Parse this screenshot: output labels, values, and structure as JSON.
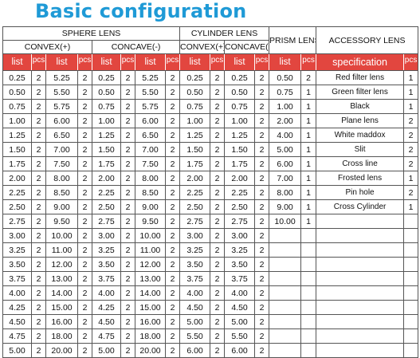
{
  "title": "Basic configuration",
  "headers": {
    "sphere_lens": "SPHERE LENS",
    "cylinder_lens": "CYLINDER LENS",
    "prism_lens": "PRISM LENS",
    "accessory_lens": "ACCESSORY LENS",
    "sphere_convex": "CONVEX(+)",
    "sphere_concave": "CONCAVE(-)",
    "cyl_convex": "CONVEX(+)",
    "cyl_concave": "CONCAVE(-)",
    "list": "list",
    "pcs": "pcs",
    "specification": "specification"
  },
  "rows": [
    [
      "0.25",
      "2",
      "5.25",
      "2",
      "0.25",
      "2",
      "5.25",
      "2",
      "0.25",
      "2",
      "0.25",
      "2",
      "0.50",
      "2",
      "Red filter lens",
      "1"
    ],
    [
      "0.50",
      "2",
      "5.50",
      "2",
      "0.50",
      "2",
      "5.50",
      "2",
      "0.50",
      "2",
      "0.50",
      "2",
      "0.75",
      "1",
      "Green filter lens",
      "1"
    ],
    [
      "0.75",
      "2",
      "5.75",
      "2",
      "0.75",
      "2",
      "5.75",
      "2",
      "0.75",
      "2",
      "0.75",
      "2",
      "1.00",
      "1",
      "Black",
      "1"
    ],
    [
      "1.00",
      "2",
      "6.00",
      "2",
      "1.00",
      "2",
      "6.00",
      "2",
      "1.00",
      "2",
      "1.00",
      "2",
      "2.00",
      "1",
      "Plane lens",
      "2"
    ],
    [
      "1.25",
      "2",
      "6.50",
      "2",
      "1.25",
      "2",
      "6.50",
      "2",
      "1.25",
      "2",
      "1.25",
      "2",
      "4.00",
      "1",
      "White maddox",
      "2"
    ],
    [
      "1.50",
      "2",
      "7.00",
      "2",
      "1.50",
      "2",
      "7.00",
      "2",
      "1.50",
      "2",
      "1.50",
      "2",
      "5.00",
      "1",
      "Slit",
      "2"
    ],
    [
      "1.75",
      "2",
      "7.50",
      "2",
      "1.75",
      "2",
      "7.50",
      "2",
      "1.75",
      "2",
      "1.75",
      "2",
      "6.00",
      "1",
      "Cross line",
      "2"
    ],
    [
      "2.00",
      "2",
      "8.00",
      "2",
      "2.00",
      "2",
      "8.00",
      "2",
      "2.00",
      "2",
      "2.00",
      "2",
      "7.00",
      "1",
      "Frosted lens",
      "1"
    ],
    [
      "2.25",
      "2",
      "8.50",
      "2",
      "2.25",
      "2",
      "8.50",
      "2",
      "2.25",
      "2",
      "2.25",
      "2",
      "8.00",
      "1",
      "Pin  hole",
      "2"
    ],
    [
      "2.50",
      "2",
      "9.00",
      "2",
      "2.50",
      "2",
      "9.00",
      "2",
      "2.50",
      "2",
      "2.50",
      "2",
      "9.00",
      "1",
      "Cross Cylinder",
      "1"
    ],
    [
      "2.75",
      "2",
      "9.50",
      "2",
      "2.75",
      "2",
      "9.50",
      "2",
      "2.75",
      "2",
      "2.75",
      "2",
      "10.00",
      "1",
      "",
      ""
    ],
    [
      "3.00",
      "2",
      "10.00",
      "2",
      "3.00",
      "2",
      "10.00",
      "2",
      "3.00",
      "2",
      "3.00",
      "2",
      "",
      "",
      "",
      ""
    ],
    [
      "3.25",
      "2",
      "11.00",
      "2",
      "3.25",
      "2",
      "11.00",
      "2",
      "3.25",
      "2",
      "3.25",
      "2",
      "",
      "",
      "",
      ""
    ],
    [
      "3.50",
      "2",
      "12.00",
      "2",
      "3.50",
      "2",
      "12.00",
      "2",
      "3.50",
      "2",
      "3.50",
      "2",
      "",
      "",
      "",
      ""
    ],
    [
      "3.75",
      "2",
      "13.00",
      "2",
      "3.75",
      "2",
      "13.00",
      "2",
      "3.75",
      "2",
      "3.75",
      "2",
      "",
      "",
      "",
      ""
    ],
    [
      "4.00",
      "2",
      "14.00",
      "2",
      "4.00",
      "2",
      "14.00",
      "2",
      "4.00",
      "2",
      "4.00",
      "2",
      "",
      "",
      "",
      ""
    ],
    [
      "4.25",
      "2",
      "15.00",
      "2",
      "4.25",
      "2",
      "15.00",
      "2",
      "4.50",
      "2",
      "4.50",
      "2",
      "",
      "",
      "",
      ""
    ],
    [
      "4.50",
      "2",
      "16.00",
      "2",
      "4.50",
      "2",
      "16.00",
      "2",
      "5.00",
      "2",
      "5.00",
      "2",
      "",
      "",
      "",
      ""
    ],
    [
      "4.75",
      "2",
      "18.00",
      "2",
      "4.75",
      "2",
      "18.00",
      "2",
      "5.50",
      "2",
      "5.50",
      "2",
      "",
      "",
      "",
      ""
    ],
    [
      "5.00",
      "2",
      "20.00",
      "2",
      "5.00",
      "2",
      "20.00",
      "2",
      "6.00",
      "2",
      "6.00",
      "2",
      "",
      "",
      "",
      ""
    ]
  ],
  "colors": {
    "title": "#1f9ad6",
    "header_band": "#e2463f"
  }
}
